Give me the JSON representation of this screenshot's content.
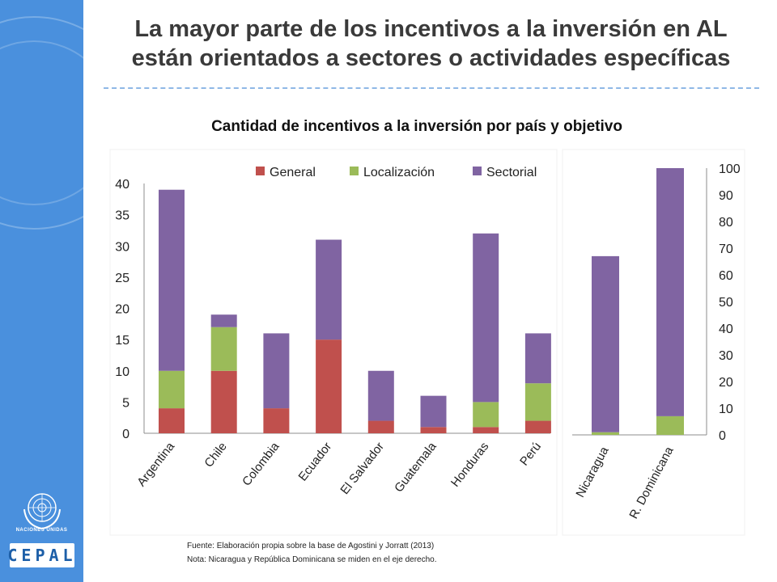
{
  "slide": {
    "title_line1": "La mayor parte de los incentivos a la inversión en AL",
    "title_line2": "están orientados a sectores o actividades específicas",
    "subtitle": "Cantidad de incentivos a la inversión por país y objetivo",
    "source": "Fuente: Elaboración propia sobre la base de Agostini y Jorratt (2013)",
    "note": "Nota: Nicaragua y República Dominicana se miden en el eje derecho."
  },
  "logos": {
    "un_text": "NACIONES UNIDAS",
    "cepal_text": "CEPAL"
  },
  "colors": {
    "sidebar": "#4a90dd",
    "general": "#c0504d",
    "localizacion": "#9bbb59",
    "sectorial": "#8064a2"
  },
  "chart_data": [
    {
      "type": "bar",
      "stacked": true,
      "axis": "left",
      "categories": [
        "Argentina",
        "Chile",
        "Colombia",
        "Ecuador",
        "El Salvador",
        "Guatemala",
        "Honduras",
        "Perú"
      ],
      "series": [
        {
          "name": "General",
          "values": [
            4,
            10,
            4,
            15,
            2,
            1,
            1,
            2
          ]
        },
        {
          "name": "Localización",
          "values": [
            6,
            7,
            0,
            0,
            0,
            0,
            4,
            6
          ]
        },
        {
          "name": "Sectorial",
          "values": [
            29,
            2,
            12,
            16,
            8,
            5,
            27,
            8
          ]
        }
      ],
      "ylim": [
        0,
        40
      ],
      "yticks": [
        "0",
        "5",
        "10",
        "15",
        "20",
        "25",
        "30",
        "35",
        "40"
      ],
      "legend": "top-center"
    },
    {
      "type": "bar",
      "stacked": true,
      "axis": "right",
      "categories": [
        "Nicaragua",
        "R. Dominicana"
      ],
      "series": [
        {
          "name": "General",
          "values": [
            0,
            0
          ]
        },
        {
          "name": "Localización",
          "values": [
            1,
            7
          ]
        },
        {
          "name": "Sectorial",
          "values": [
            66,
            93
          ]
        }
      ],
      "ylim": [
        0,
        100
      ],
      "yticks": [
        "0",
        "10",
        "20",
        "30",
        "40",
        "50",
        "60",
        "70",
        "80",
        "90",
        "100"
      ]
    }
  ]
}
